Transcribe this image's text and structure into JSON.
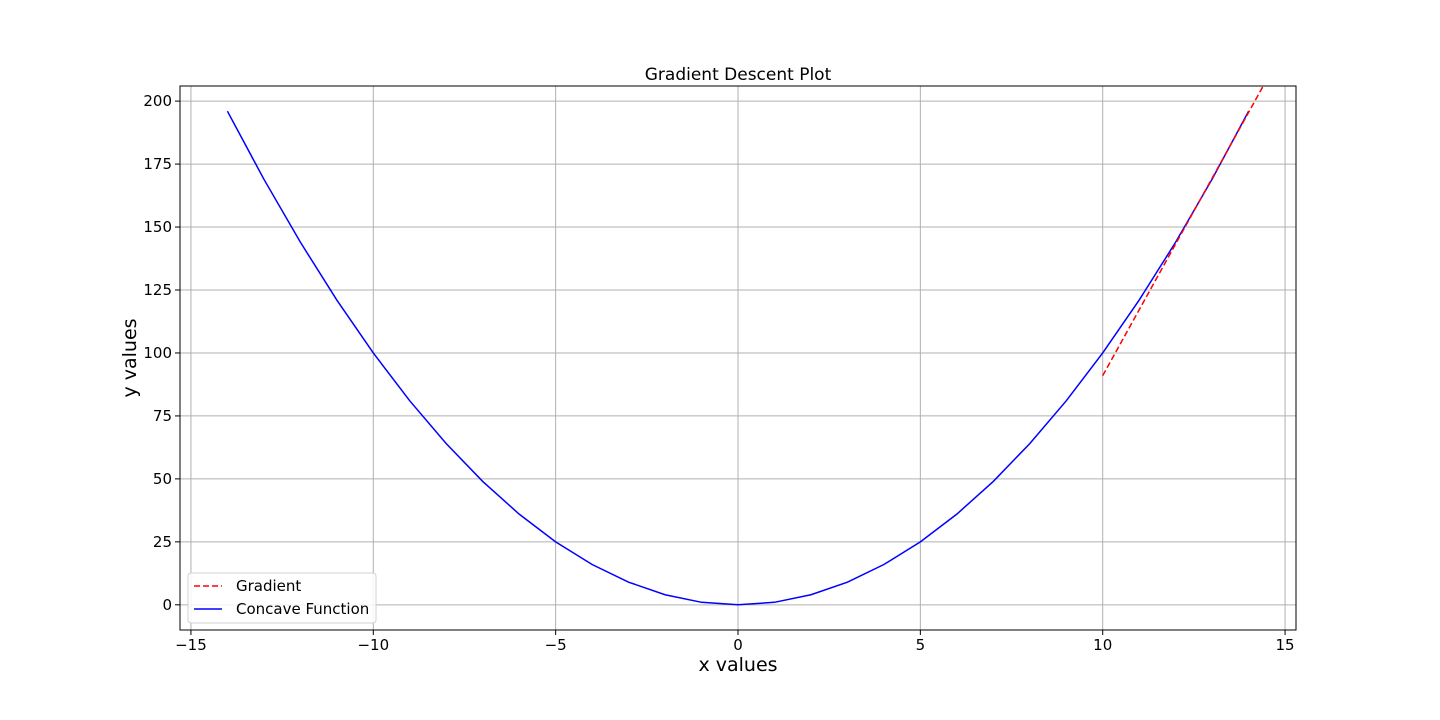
{
  "chart_data": {
    "type": "line",
    "title": "Gradient Descent Plot",
    "xlabel": "x values",
    "ylabel": "y values",
    "xlim": [
      -15.3,
      15.3
    ],
    "ylim": [
      -10,
      206
    ],
    "xticks": [
      -15,
      -10,
      -5,
      0,
      5,
      10,
      15
    ],
    "yticks": [
      0,
      25,
      50,
      75,
      100,
      125,
      150,
      175,
      200
    ],
    "grid": true,
    "legend_position": "lower-left",
    "series": [
      {
        "name": "Gradient",
        "style": "dashed",
        "color": "#ff0000",
        "x": [
          10,
          14.4
        ],
        "y": [
          91,
          206
        ]
      },
      {
        "name": "Concave Function",
        "style": "solid",
        "color": "#0000ff",
        "x": [
          -14,
          -13,
          -12,
          -11,
          -10,
          -9,
          -8,
          -7,
          -6,
          -5,
          -4,
          -3,
          -2,
          -1,
          0,
          1,
          2,
          3,
          4,
          5,
          6,
          7,
          8,
          9,
          10,
          11,
          12,
          13,
          14
        ],
        "y": [
          196,
          169,
          144,
          121,
          100,
          81,
          64,
          49,
          36,
          25,
          16,
          9,
          4,
          1,
          0,
          1,
          4,
          9,
          16,
          25,
          36,
          49,
          64,
          81,
          100,
          121,
          144,
          169,
          196
        ]
      }
    ]
  }
}
